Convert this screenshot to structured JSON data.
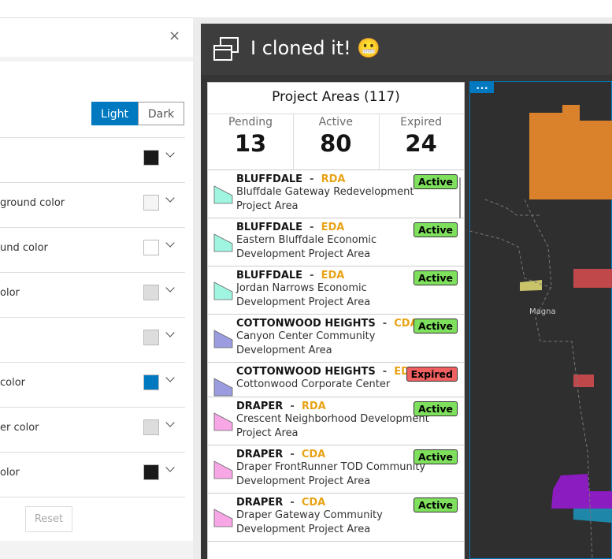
{
  "settings_panel": {
    "close": "×",
    "theme_options": [
      "Light",
      "Dark"
    ],
    "selected_theme": 0,
    "color_rows": [
      {
        "swatch": "#1a1a1a"
      },
      {
        "label": "ground color",
        "swatch": "#f5f5f5"
      },
      {
        "label": "und color",
        "swatch": "#ffffff"
      },
      {
        "label": "olor",
        "swatch": "#dddddd"
      },
      {
        "swatch": "#dddddd"
      },
      {
        "label": "color",
        "swatch": "#0079c1"
      },
      {
        "label": "er color",
        "swatch": "#dddddd"
      },
      {
        "label": "olor",
        "swatch": "#1a1a1a"
      }
    ],
    "reset": "Reset"
  },
  "app_header": {
    "title": "I cloned it! 😬"
  },
  "project_list": {
    "title": "Project Areas (117)",
    "stats": [
      {
        "label": "Pending",
        "value": 13
      },
      {
        "label": "Active",
        "value": 80
      },
      {
        "label": "Expired",
        "value": 24
      }
    ],
    "separator": "-",
    "items": [
      {
        "city": "BLUFFDALE",
        "type": "RDA",
        "name": "Bluffdale Gateway Redevelopment Project Area",
        "status": "Active",
        "color": "#9ff5e0"
      },
      {
        "city": "BLUFFDALE",
        "type": "EDA",
        "name": "Eastern Bluffdale Economic Development Project Area",
        "status": "Active",
        "color": "#9ff5e0"
      },
      {
        "city": "BLUFFDALE",
        "type": "EDA",
        "name": "Jordan Narrows Economic Development Project Area",
        "status": "Active",
        "color": "#9ff5e0"
      },
      {
        "city": "COTTONWOOD HEIGHTS",
        "type": "CDA",
        "name": "Canyon Center Community Development Area",
        "status": "Active",
        "color": "#9b9be0"
      },
      {
        "city": "COTTONWOOD HEIGHTS",
        "type": "EDA",
        "name": "Cottonwood Corporate Center",
        "status": "Expired",
        "color": "#9b9be0"
      },
      {
        "city": "DRAPER",
        "type": "RDA",
        "name": "Crescent Neighborhood Development Project Area",
        "status": "Active",
        "color": "#f7a6e6"
      },
      {
        "city": "DRAPER",
        "type": "CDA",
        "name": "Draper FrontRunner TOD Community Development Project Area",
        "status": "Active",
        "color": "#f7a6e6"
      },
      {
        "city": "DRAPER",
        "type": "CDA",
        "name": "Draper Gateway Community Development Project Area",
        "status": "Active",
        "color": "#f7a6e6"
      }
    ]
  },
  "map": {
    "menu": "•••",
    "place_label": "Magna"
  }
}
